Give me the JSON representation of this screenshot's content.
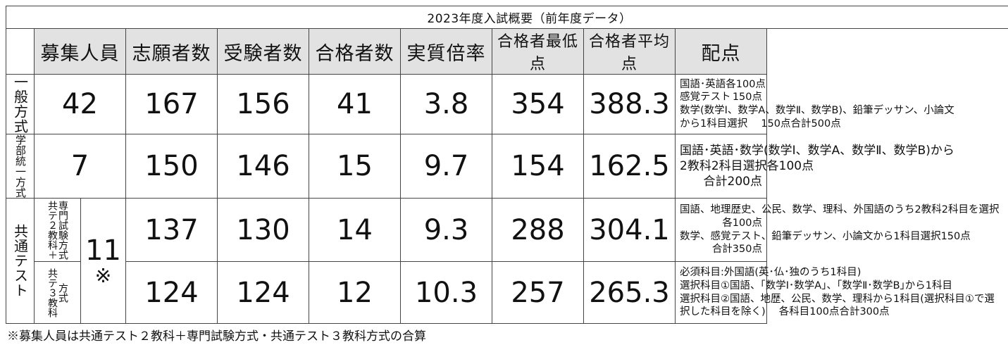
{
  "title": "2023年度入試概要（前年度データ）",
  "headers": [
    "募集人員",
    "志願者数",
    "受験者数",
    "合格者数",
    "実質倍率",
    "合格者最低点",
    "合格者平均点",
    "配点"
  ],
  "rows": {
    "ippan": {
      "label": "一般方式",
      "capacity": "42",
      "applicants": "167",
      "examinees": "156",
      "passers": "41",
      "ratio": "3.8",
      "min_score": "354",
      "avg_score": "388.3",
      "scoring": [
        {
          "l": "国語･英語",
          "r": "各100点"
        },
        {
          "l": "感覚テスト",
          "r": "150点"
        },
        {
          "l": "数学(数学Ⅰ、数学A、数学Ⅱ、数学B)、鉛筆デッサン、小論文",
          "r": ""
        },
        {
          "l": "から1科目選択　 150点",
          "r": "合計500点"
        }
      ]
    },
    "gakubu": {
      "label": "学部統一方式",
      "capacity": "7",
      "applicants": "150",
      "examinees": "146",
      "passers": "15",
      "ratio": "9.7",
      "min_score": "154",
      "avg_score": "162.5",
      "scoring": [
        {
          "l": "国語･英語･数学(数学Ⅰ、数学A、数学Ⅱ、数学B)から",
          "r": ""
        },
        {
          "l": "2教科2科目選択",
          "r": "各100点"
        },
        {
          "l": "",
          "r": "合計200点"
        }
      ]
    },
    "kyotsu": {
      "label": "共通テスト",
      "capacity": "11",
      "capacity_mark": "※",
      "sub1": {
        "label_col1": "共テ２教科＋",
        "label_col2": "専門試験方式",
        "applicants": "137",
        "examinees": "130",
        "passers": "14",
        "ratio": "9.3",
        "min_score": "288",
        "avg_score": "304.1",
        "scoring": [
          {
            "l": "国語、地理歴史、公民、数学、理科、外国語のうち2教科2科目を選択",
            "r": ""
          },
          {
            "l": "",
            "r": "各100点"
          },
          {
            "l": "数学、感覚テスト、鉛筆デッサン、小論文から1科目選択",
            "r": "150点"
          },
          {
            "l": "",
            "r": "合計350点"
          }
        ]
      },
      "sub2": {
        "label_col1": "共テ３教科",
        "label_col2": "方式",
        "applicants": "124",
        "examinees": "124",
        "passers": "12",
        "ratio": "10.3",
        "min_score": "257",
        "avg_score": "265.3",
        "scoring": [
          {
            "l": "必須科目:外国語(英･仏･独のうち1科目)",
            "r": ""
          },
          {
            "l": "選択科目①国語、｢数学Ⅰ･数学A｣、｢数学Ⅱ･数学B｣から1科目",
            "r": ""
          },
          {
            "l": "選択科目②国語、地歴、公民、数学、理科から1科目(選択科目①で選",
            "r": ""
          },
          {
            "l": "択した科目を除く)　 各科目100点",
            "r": "合計300点"
          }
        ]
      }
    }
  },
  "footnote": "※募集人員は共通テスト２教科＋専門試験方式・共通テスト３教科方式の合算"
}
